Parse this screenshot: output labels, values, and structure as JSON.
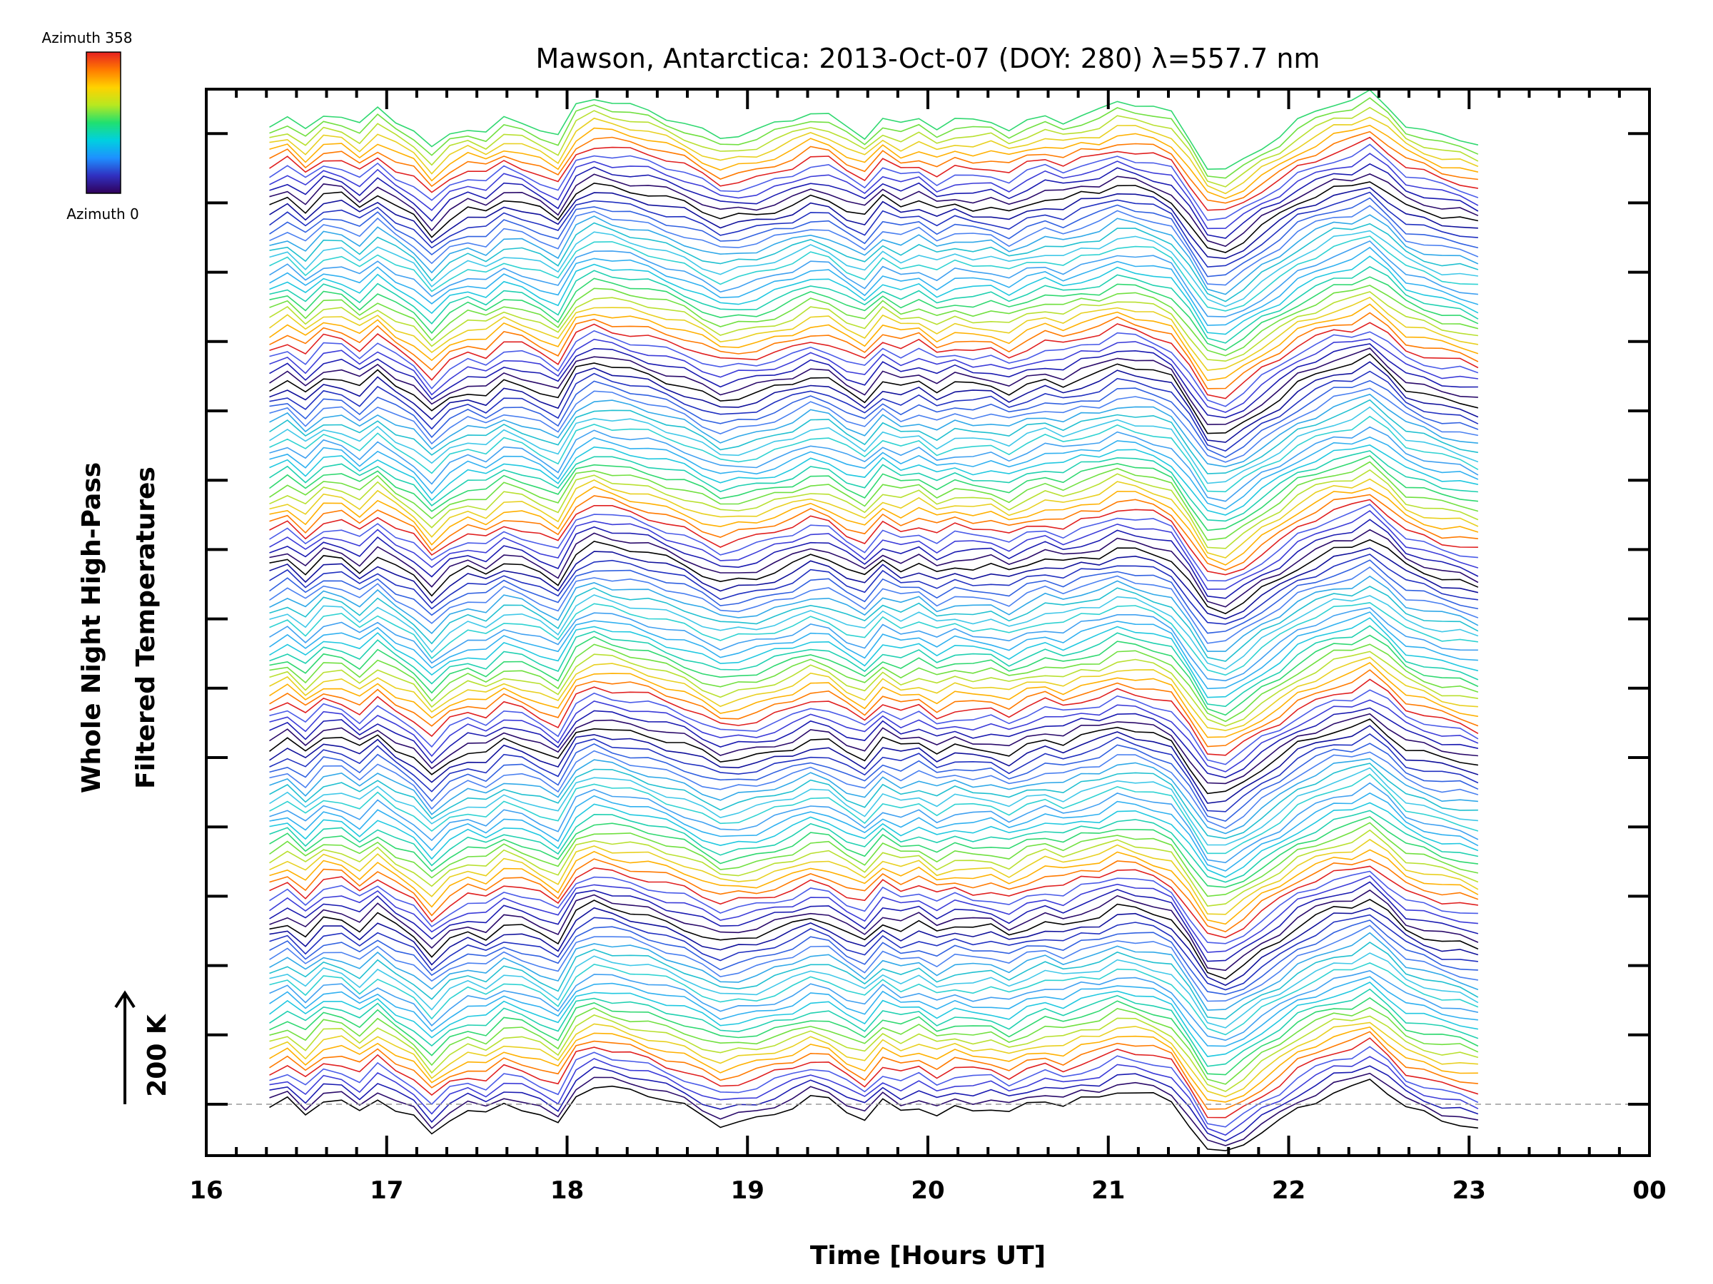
{
  "chart_data": {
    "type": "line",
    "title": "Mawson, Antarctica: 2013-Oct-07 (DOY: 280) λ=557.7 nm",
    "xlabel": "Time [Hours UT]",
    "ylabel_line1": "Whole Night High-Pass",
    "ylabel_line2": "Filtered Temperatures",
    "scale_label": "200 K",
    "xlim": [
      16,
      24
    ],
    "x_ticks": [
      "16",
      "17",
      "18",
      "19",
      "20",
      "21",
      "22",
      "23",
      "00"
    ],
    "colorbar": {
      "max_label": "Azimuth 358",
      "min_label": "Azimuth 0",
      "colors": [
        "#30005a",
        "#3030c0",
        "#1e90ff",
        "#00d0e0",
        "#20e070",
        "#b8e820",
        "#ffd200",
        "#ff7a00",
        "#e62020"
      ]
    },
    "x": [
      16.35,
      16.45,
      16.55,
      16.65,
      16.75,
      16.85,
      16.95,
      17.05,
      17.15,
      17.25,
      17.35,
      17.45,
      17.55,
      17.65,
      17.75,
      17.85,
      17.95,
      18.05,
      18.15,
      18.25,
      18.35,
      18.45,
      18.55,
      18.65,
      18.75,
      18.85,
      18.95,
      19.05,
      19.15,
      19.25,
      19.35,
      19.45,
      19.55,
      19.65,
      19.75,
      19.85,
      19.95,
      20.05,
      20.15,
      20.25,
      20.35,
      20.45,
      20.55,
      20.65,
      20.75,
      20.85,
      20.95,
      21.05,
      21.15,
      21.25,
      21.35,
      21.45,
      21.55,
      21.65,
      21.75,
      21.85,
      21.95,
      22.05,
      22.15,
      22.25,
      22.35,
      22.45,
      22.55,
      22.65,
      22.75,
      22.85,
      22.95,
      23.05
    ],
    "base_anomaly_K": [
      -10,
      5,
      -20,
      10,
      8,
      -12,
      15,
      -8,
      -25,
      -60,
      -30,
      -15,
      -22,
      2,
      -5,
      -18,
      -35,
      20,
      35,
      28,
      22,
      15,
      5,
      -5,
      -20,
      -35,
      -30,
      -25,
      -15,
      -5,
      10,
      5,
      -15,
      -30,
      5,
      -10,
      0,
      -18,
      -5,
      -10,
      -8,
      -20,
      -5,
      5,
      -2,
      10,
      15,
      30,
      25,
      18,
      5,
      -40,
      -90,
      -95,
      -75,
      -50,
      -30,
      -5,
      10,
      25,
      30,
      45,
      20,
      -10,
      -20,
      -30,
      -35,
      -45
    ],
    "n_azimuths": 132,
    "scale_K": 200
  }
}
